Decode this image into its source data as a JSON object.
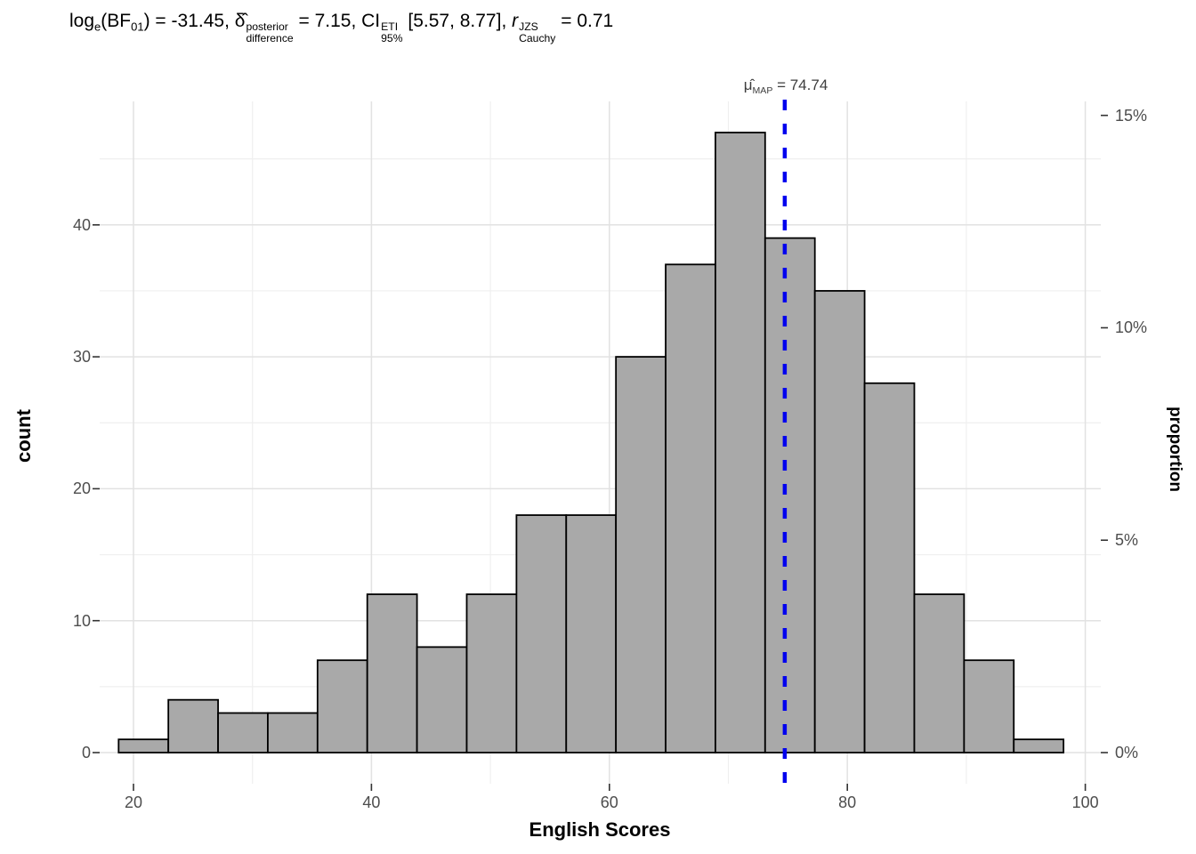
{
  "chart_data": {
    "type": "histogram",
    "title_segments": [
      {
        "t": "txt",
        "v": "log",
        "name": "title-log"
      },
      {
        "t": "sub",
        "v": "e",
        "name": "title-log-base"
      },
      {
        "t": "txt",
        "v": "(BF",
        "name": "title-bf"
      },
      {
        "t": "sub",
        "v": "01",
        "name": "title-bf-sub"
      },
      {
        "t": "txt",
        "v": ") = -31.45, ",
        "name": "title-bf-value"
      },
      {
        "t": "txt",
        "v": "δ̂",
        "name": "title-delta-hat"
      },
      {
        "t": "stack",
        "top": "posterior",
        "bot": "difference",
        "name": "title-delta-supsub"
      },
      {
        "t": "txt",
        "v": " = 7.15, CI",
        "name": "title-delta-value-and-ci"
      },
      {
        "t": "stack",
        "top": "ETI",
        "bot": "95%",
        "name": "title-ci-supsub"
      },
      {
        "t": "txt",
        "v": " [5.57, 8.77], ",
        "name": "title-ci-interval"
      },
      {
        "t": "it",
        "v": "r",
        "name": "title-r"
      },
      {
        "t": "stack",
        "top": "JZS",
        "bot": "Cauchy",
        "name": "title-r-supsub"
      },
      {
        "t": "txt",
        "v": " = 0.71",
        "name": "title-r-value"
      }
    ],
    "map_label_segments": [
      {
        "t": "txt",
        "v": "μ̂",
        "name": "map-mu-hat"
      },
      {
        "t": "sub",
        "v": "MAP",
        "name": "map-sub"
      },
      {
        "t": "txt",
        "v": " = 74.74",
        "name": "map-value"
      }
    ],
    "x_axis": {
      "label": "English Scores",
      "ticks": [
        20,
        40,
        60,
        80,
        100
      ],
      "minor_ticks": [
        30,
        50,
        70,
        90
      ],
      "lim": [
        17.2,
        101.4
      ]
    },
    "y_left": {
      "label": "count",
      "ticks": [
        0,
        10,
        20,
        30,
        40
      ],
      "minor_ticks": [
        5,
        15,
        25,
        35,
        45
      ],
      "lim": [
        -2.4,
        49.7
      ]
    },
    "y_right": {
      "label": "proportion",
      "tick_labels": [
        "0%",
        "5%",
        "10%",
        "15%"
      ],
      "tick_percents": [
        0,
        5,
        10,
        15
      ]
    },
    "bins": {
      "start": 18.75,
      "width": 4.18,
      "counts": [
        1,
        4,
        3,
        3,
        7,
        12,
        8,
        12,
        18,
        18,
        30,
        37,
        47,
        39,
        35,
        28,
        12,
        7,
        1
      ]
    },
    "total_n": 322,
    "centrality_line": {
      "value": 74.74,
      "style": "dashed"
    },
    "stats": {
      "log_bf01": -31.45,
      "delta_posterior_difference": 7.15,
      "ci_type": "ETI",
      "ci_level": "95%",
      "ci_lower": 5.57,
      "ci_upper": 8.77,
      "r_cauchy_jzs": 0.71,
      "mu_map": 74.74
    },
    "colors": {
      "bar_fill": "#A9A9A9",
      "bar_stroke": "#000000",
      "grid_major": "#E2E2E2",
      "grid_minor": "#EFEFEF",
      "centrality": "#0000EE",
      "tick_label": "#4D4D4D",
      "tick_mark": "#333333",
      "axis_title": "#000000",
      "map_label": "#3D3D3D"
    }
  }
}
